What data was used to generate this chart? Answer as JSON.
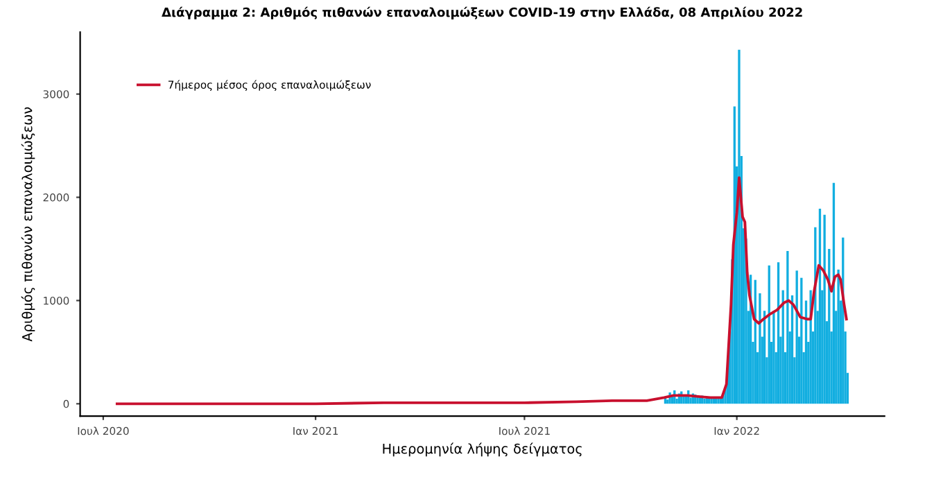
{
  "chart_data": {
    "type": "bar",
    "title": "Διάγραμμα 2: Αριθμός πιθανών επαναλοιμώξεων COVID-19 στην Ελλάδα, 08 Απριλίου 2022",
    "xlabel": "Ημερομηνία λήψης δείγματος",
    "ylabel": "Αριθμός πιθανών επαναλοιμώξεων",
    "xlim": [
      "2020-06-11",
      "2022-05-09"
    ],
    "ylim": [
      -120,
      3600
    ],
    "xticks": [
      {
        "value": "2020-07-01",
        "label": "Ιουλ 2020"
      },
      {
        "value": "2021-01-01",
        "label": "Ιαν 2021"
      },
      {
        "value": "2021-07-01",
        "label": "Ιουλ 2021"
      },
      {
        "value": "2022-01-01",
        "label": "Ιαν 2022"
      }
    ],
    "yticks": [
      0,
      1000,
      2000,
      3000
    ],
    "grid": false,
    "legend": "top left",
    "series": [
      {
        "color": "#12aee0",
        "x": [
          "2021-10-30",
          "2021-11-01",
          "2021-11-03",
          "2021-11-05",
          "2021-11-07",
          "2021-11-09",
          "2021-11-11",
          "2021-11-13",
          "2021-11-15",
          "2021-11-17",
          "2021-11-19",
          "2021-11-21",
          "2021-11-23",
          "2021-11-25",
          "2021-11-27",
          "2021-11-29",
          "2021-12-01",
          "2021-12-03",
          "2021-12-05",
          "2021-12-07",
          "2021-12-09",
          "2021-12-11",
          "2021-12-13",
          "2021-12-15",
          "2021-12-17",
          "2021-12-19",
          "2021-12-21",
          "2021-12-23",
          "2021-12-25",
          "2021-12-27",
          "2021-12-29",
          "2021-12-31",
          "2022-01-02",
          "2022-01-04",
          "2022-01-06",
          "2022-01-08",
          "2022-01-10",
          "2022-01-12",
          "2022-01-14",
          "2022-01-16",
          "2022-01-18",
          "2022-01-20",
          "2022-01-22",
          "2022-01-24",
          "2022-01-26",
          "2022-01-28",
          "2022-01-30",
          "2022-02-01",
          "2022-02-03",
          "2022-02-05",
          "2022-02-07",
          "2022-02-09",
          "2022-02-11",
          "2022-02-13",
          "2022-02-15",
          "2022-02-17",
          "2022-02-19",
          "2022-02-21",
          "2022-02-23",
          "2022-02-25",
          "2022-02-27",
          "2022-03-01",
          "2022-03-03",
          "2022-03-05",
          "2022-03-07",
          "2022-03-09",
          "2022-03-11",
          "2022-03-13",
          "2022-03-15",
          "2022-03-17",
          "2022-03-19",
          "2022-03-21",
          "2022-03-23",
          "2022-03-25",
          "2022-03-27",
          "2022-03-29",
          "2022-03-31",
          "2022-04-02",
          "2022-04-04",
          "2022-04-06"
        ],
        "values": [
          60,
          40,
          110,
          80,
          130,
          50,
          100,
          120,
          70,
          90,
          130,
          60,
          100,
          90,
          70,
          60,
          80,
          50,
          70,
          60,
          50,
          70,
          60,
          50,
          60,
          80,
          150,
          350,
          700,
          1400,
          2880,
          2300,
          3430,
          2400,
          1700,
          1600,
          900,
          1250,
          600,
          1200,
          500,
          1070,
          650,
          900,
          450,
          1340,
          600,
          900,
          500,
          1370,
          650,
          1100,
          500,
          1480,
          700,
          1050,
          450,
          1290,
          650,
          1220,
          500,
          1000,
          600,
          1100,
          700,
          1710,
          900,
          1890,
          1100,
          1830,
          800,
          1500,
          700,
          2140,
          900,
          1300,
          1000,
          1610,
          700,
          300
        ]
      },
      {
        "type": "line",
        "name": "7ήμερος μέσος όρος επαναλοιμώξεων",
        "color": "#c8102e",
        "x": [
          "2020-07-13",
          "2021-01-01",
          "2021-03-01",
          "2021-05-01",
          "2021-07-01",
          "2021-08-15",
          "2021-09-15",
          "2021-10-15",
          "2021-10-30",
          "2021-11-07",
          "2021-11-19",
          "2021-12-09",
          "2021-12-19",
          "2021-12-23",
          "2021-12-27",
          "2021-12-29",
          "2022-01-01",
          "2022-01-03",
          "2022-01-06",
          "2022-01-08",
          "2022-01-10",
          "2022-01-12",
          "2022-01-16",
          "2022-01-20",
          "2022-01-24",
          "2022-01-30",
          "2022-02-05",
          "2022-02-11",
          "2022-02-15",
          "2022-02-19",
          "2022-02-25",
          "2022-03-03",
          "2022-03-06",
          "2022-03-09",
          "2022-03-13",
          "2022-03-17",
          "2022-03-21",
          "2022-03-24",
          "2022-03-27",
          "2022-03-30",
          "2022-04-01",
          "2022-04-04",
          "2022-04-06"
        ],
        "values": [
          0,
          0,
          10,
          10,
          10,
          20,
          30,
          30,
          60,
          80,
          80,
          60,
          60,
          190,
          960,
          1540,
          1850,
          2190,
          1810,
          1760,
          1270,
          1050,
          820,
          780,
          820,
          870,
          910,
          980,
          1000,
          960,
          840,
          820,
          820,
          1090,
          1340,
          1290,
          1200,
          1090,
          1230,
          1250,
          1200,
          960,
          820
        ]
      }
    ]
  }
}
